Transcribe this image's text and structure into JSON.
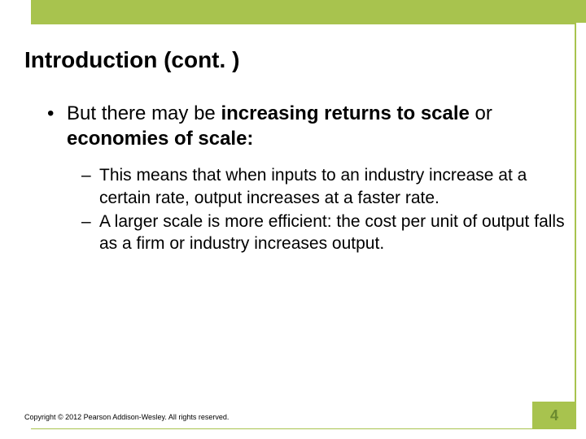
{
  "colors": {
    "accent": "#a8c34e",
    "top_left": "#ffffff",
    "frame_border": "#a8c34e",
    "page_text": "#6b8a2f",
    "text": "#000000"
  },
  "title": "Introduction (cont. )",
  "bullet": {
    "prefix": "But there may be ",
    "bold1": "increasing returns to scale",
    "mid": " or ",
    "bold2": "economies of scale:"
  },
  "sub": [
    "This means that when inputs to an industry increase at a certain rate, output increases at a faster rate.",
    "A larger scale is more efficient: the cost per unit of output falls as a firm or industry increases output."
  ],
  "copyright": "Copyright © 2012 Pearson Addison-Wesley. All rights reserved.",
  "page_number": "4"
}
